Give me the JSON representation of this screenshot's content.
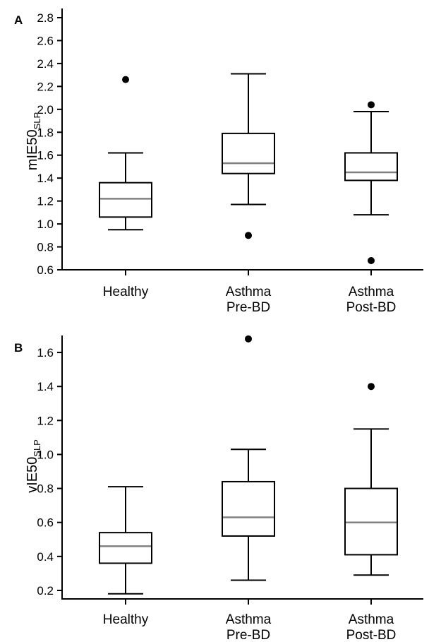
{
  "colors": {
    "axis": "#000000",
    "box": "#000000",
    "median": "#808080",
    "outlier": "#000000",
    "background": "#ffffff"
  },
  "chart_data": [
    {
      "type": "box",
      "panel_label": "A",
      "ylabel_main": "mIE50",
      "ylabel_sub": "SLP",
      "ylim": [
        0.6,
        2.88
      ],
      "yticks": [
        0.6,
        0.8,
        1.0,
        1.2,
        1.4,
        1.6,
        1.8,
        2.0,
        2.2,
        2.4,
        2.6,
        2.8
      ],
      "ytick_labels": [
        "0.6",
        "0.8",
        "1.0",
        "1.2",
        "1.4",
        "1.6",
        "1.8",
        "2.0",
        "2.2",
        "2.4",
        "2.6",
        "2.8"
      ],
      "categories": [
        {
          "line1": "Healthy",
          "line2": ""
        },
        {
          "line1": "Asthma",
          "line2": "Pre-BD"
        },
        {
          "line1": "Asthma",
          "line2": "Post-BD"
        }
      ],
      "boxes": [
        {
          "whisker_low": 0.95,
          "q1": 1.06,
          "median": 1.22,
          "q3": 1.36,
          "whisker_high": 1.62,
          "outliers": [
            2.26
          ]
        },
        {
          "whisker_low": 1.17,
          "q1": 1.44,
          "median": 1.53,
          "q3": 1.79,
          "whisker_high": 2.31,
          "outliers": [
            0.9
          ]
        },
        {
          "whisker_low": 1.08,
          "q1": 1.38,
          "median": 1.45,
          "q3": 1.62,
          "whisker_high": 1.98,
          "outliers": [
            2.04,
            0.68
          ]
        }
      ]
    },
    {
      "type": "box",
      "panel_label": "B",
      "ylabel_main": "vIE50",
      "ylabel_sub": "SLP",
      "ylim": [
        0.15,
        1.7
      ],
      "yticks": [
        0.2,
        0.4,
        0.6,
        0.8,
        1.0,
        1.2,
        1.4,
        1.6
      ],
      "ytick_labels": [
        "0.2",
        "0.4",
        "0.6",
        "0.8",
        "1.0",
        "1.2",
        "1.4",
        "1.6"
      ],
      "categories": [
        {
          "line1": "Healthy",
          "line2": ""
        },
        {
          "line1": "Asthma",
          "line2": "Pre-BD"
        },
        {
          "line1": "Asthma",
          "line2": "Post-BD"
        }
      ],
      "boxes": [
        {
          "whisker_low": 0.18,
          "q1": 0.36,
          "median": 0.46,
          "q3": 0.54,
          "whisker_high": 0.81,
          "outliers": []
        },
        {
          "whisker_low": 0.26,
          "q1": 0.52,
          "median": 0.63,
          "q3": 0.84,
          "whisker_high": 1.03,
          "outliers": [
            1.68
          ]
        },
        {
          "whisker_low": 0.29,
          "q1": 0.41,
          "median": 0.6,
          "q3": 0.8,
          "whisker_high": 1.15,
          "outliers": [
            1.4
          ]
        }
      ]
    }
  ]
}
